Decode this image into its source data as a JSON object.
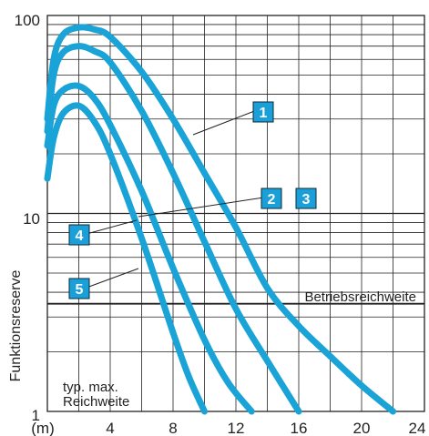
{
  "chart_data": {
    "type": "line",
    "title": "",
    "xlabel": "",
    "ylabel": "Funktionsreserve",
    "x_unit_label": "(m)",
    "x_ticks": [
      "4",
      "8",
      "12",
      "16",
      "20",
      "24"
    ],
    "y_ticks": [
      "1",
      "10",
      "100"
    ],
    "xlim": [
      0,
      24
    ],
    "ylim": [
      1,
      100
    ],
    "yscale": "log",
    "grid": true,
    "colors": {
      "curve": "#19a3d6",
      "badge": "#1a9fd8",
      "grid": "#222222"
    },
    "threshold": {
      "label": "Betriebsreichweite",
      "y": 3.5
    },
    "annotation_lines": [
      "typ. max.",
      "Reichweite"
    ],
    "series": [
      {
        "badge_labels": [
          "1"
        ],
        "x": [
          0,
          0.4,
          1,
          2,
          3,
          4,
          6,
          8,
          10,
          12,
          14,
          16,
          18,
          20,
          22
        ],
        "y": [
          30,
          60,
          80,
          87,
          85,
          78,
          52,
          30,
          16,
          8.5,
          4.2,
          2.7,
          1.9,
          1.35,
          1.0
        ]
      },
      {
        "badge_labels": [
          "2",
          "3"
        ],
        "x": [
          0,
          0.4,
          1,
          2,
          3,
          4,
          6,
          8,
          10,
          12,
          14,
          16
        ],
        "y": [
          26,
          50,
          65,
          70,
          66,
          58,
          33,
          16,
          7.2,
          3.3,
          1.8,
          1.0
        ]
      },
      {
        "badge_labels": [
          "4"
        ],
        "x": [
          0,
          0.4,
          1,
          2,
          3,
          4,
          6,
          8,
          10,
          11.5,
          13
        ],
        "y": [
          22,
          35,
          42,
          44,
          38,
          28,
          13,
          5.3,
          2.3,
          1.4,
          1.0
        ]
      },
      {
        "badge_labels": [
          "5"
        ],
        "x": [
          0,
          0.4,
          1,
          2,
          3,
          4,
          6,
          8,
          9,
          10
        ],
        "y": [
          15,
          24,
          32,
          35,
          29,
          20,
          7.5,
          2.5,
          1.5,
          1.0
        ]
      }
    ]
  }
}
